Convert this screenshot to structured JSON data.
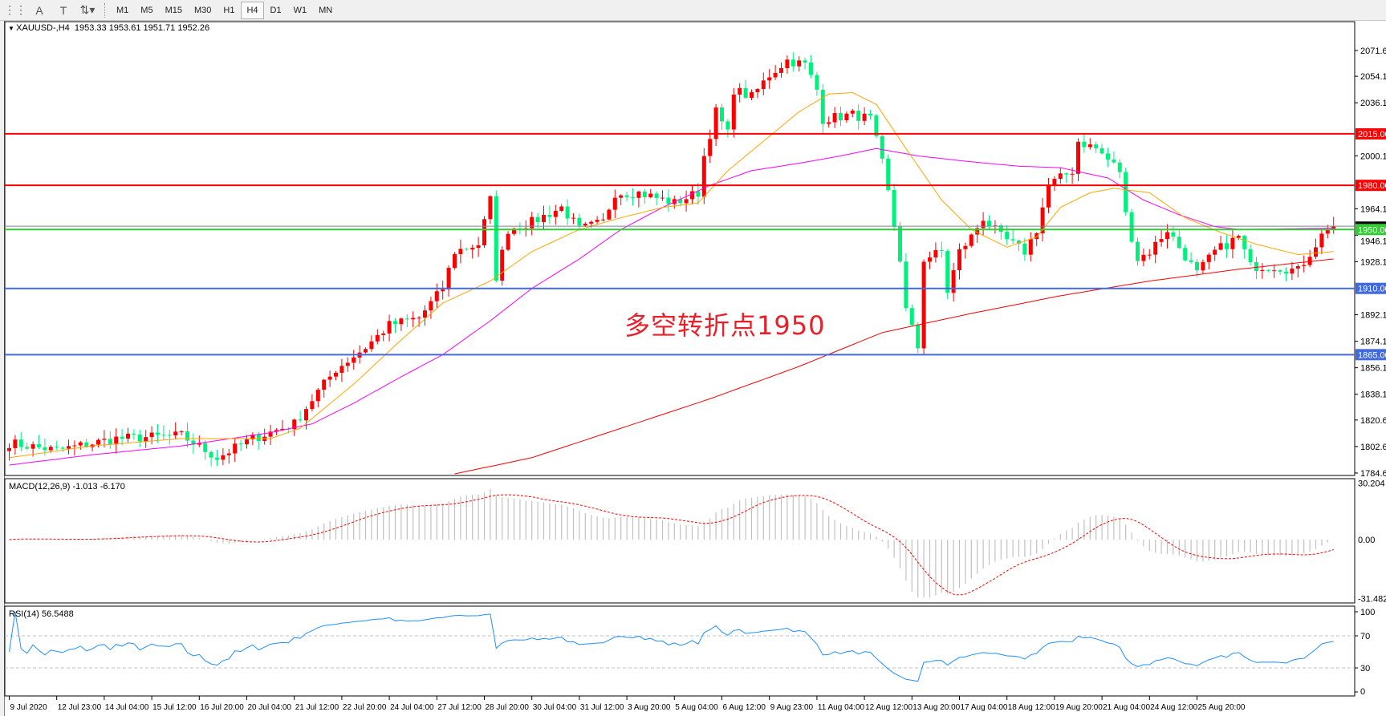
{
  "toolbar": {
    "tools": [
      {
        "name": "period-separators-icon",
        "glyph": "⋮⋮"
      },
      {
        "name": "text-icon",
        "glyph": "A"
      },
      {
        "name": "text-label-icon",
        "glyph": "T"
      },
      {
        "name": "arrows-dropdown-icon",
        "glyph": "⇅▾"
      }
    ],
    "timeframes": [
      "M1",
      "M5",
      "M15",
      "M30",
      "H1",
      "H4",
      "D1",
      "W1",
      "MN"
    ],
    "active_timeframe": "H4"
  },
  "chart": {
    "header": "XAUUSD-,H4  1953.33 1953.61 1951.71 1952.26",
    "annotation": "多空转折点1950",
    "colors": {
      "up": "#ff0000",
      "down": "#00f07c",
      "ma_fast": "#ffa500",
      "ma_mid": "#ff00ff",
      "ma_slow": "#ff0000",
      "macd_hist": "#c0c0c0",
      "macd_signal": "#ff0000",
      "rsi": "#1e90ff"
    }
  },
  "chart_data": {
    "type": "candlestick",
    "symbol": "XAUUSD-",
    "timeframe": "H4",
    "last_ohlc": {
      "open": 1953.33,
      "high": 1953.61,
      "low": 1951.71,
      "close": 1952.26
    },
    "ylim": [
      1784.6,
      2071.6
    ],
    "price_ticks": [
      "2071.60",
      "2054.10",
      "2036.10",
      "2000.10",
      "1964.10",
      "1946.10",
      "1928.10",
      "1892.10",
      "1874.10",
      "1856.10",
      "1838.10",
      "1820.60",
      "1802.60",
      "1784.60"
    ],
    "price_tick_values": [
      2071.6,
      2054.1,
      2036.1,
      2000.1,
      1964.1,
      1946.1,
      1928.1,
      1892.1,
      1874.1,
      1856.1,
      1838.1,
      1820.6,
      1802.6,
      1784.6
    ],
    "time_labels": [
      "9 Jul 2020",
      "12 Jul 23:00",
      "14 Jul 04:00",
      "15 Jul 12:00",
      "16 Jul 20:00",
      "20 Jul 04:00",
      "21 Jul 12:00",
      "22 Jul 20:00",
      "24 Jul 04:00",
      "27 Jul 12:00",
      "28 Jul 20:00",
      "30 Jul 04:00",
      "31 Jul 12:00",
      "3 Aug 20:00",
      "5 Aug 04:00",
      "6 Aug 12:00",
      "9 Aug 23:00",
      "11 Aug 04:00",
      "12 Aug 12:00",
      "13 Aug 20:00",
      "17 Aug 04:00",
      "18 Aug 12:00",
      "19 Aug 20:00",
      "21 Aug 04:00",
      "24 Aug 12:00",
      "25 Aug 20:00"
    ],
    "bars_per_label": 8,
    "bar_count": 224,
    "close_path_bar_price": [
      [
        0,
        1805
      ],
      [
        8,
        1800
      ],
      [
        18,
        1808
      ],
      [
        29,
        1810
      ],
      [
        35,
        1795
      ],
      [
        41,
        1808
      ],
      [
        48,
        1818
      ],
      [
        52,
        1840
      ],
      [
        55,
        1855
      ],
      [
        60,
        1870
      ],
      [
        64,
        1885
      ],
      [
        69,
        1890
      ],
      [
        73,
        1910
      ],
      [
        75,
        1935
      ],
      [
        79,
        1940
      ],
      [
        81,
        1970
      ],
      [
        82,
        1918
      ],
      [
        84,
        1950
      ],
      [
        88,
        1955
      ],
      [
        93,
        1965
      ],
      [
        96,
        1950
      ],
      [
        100,
        1955
      ],
      [
        102,
        1975
      ],
      [
        106,
        1975
      ],
      [
        112,
        1968
      ],
      [
        116,
        1975
      ],
      [
        117,
        2000
      ],
      [
        119,
        2030
      ],
      [
        121,
        2015
      ],
      [
        122,
        2045
      ],
      [
        125,
        2040
      ],
      [
        128,
        2055
      ],
      [
        131,
        2065
      ],
      [
        134,
        2062
      ],
      [
        136,
        2045
      ],
      [
        137,
        2025
      ],
      [
        142,
        2028
      ],
      [
        145,
        2025
      ],
      [
        147,
        1995
      ],
      [
        148,
        1975
      ],
      [
        150,
        1930
      ],
      [
        151,
        1895
      ],
      [
        153,
        1870
      ],
      [
        154,
        1930
      ],
      [
        157,
        1935
      ],
      [
        158,
        1908
      ],
      [
        160,
        1935
      ],
      [
        162,
        1945
      ],
      [
        164,
        1958
      ],
      [
        167,
        1945
      ],
      [
        171,
        1935
      ],
      [
        173,
        1950
      ],
      [
        175,
        1980
      ],
      [
        179,
        1990
      ],
      [
        180,
        2010
      ],
      [
        183,
        2005
      ],
      [
        187,
        1990
      ],
      [
        188,
        1960
      ],
      [
        190,
        1930
      ],
      [
        192,
        1935
      ],
      [
        195,
        1950
      ],
      [
        200,
        1920
      ],
      [
        203,
        1935
      ],
      [
        207,
        1945
      ],
      [
        209,
        1925
      ],
      [
        213,
        1925
      ],
      [
        217,
        1922
      ],
      [
        220,
        1940
      ],
      [
        222,
        1952
      ],
      [
        223,
        1952.26
      ]
    ],
    "ma_fast": [
      [
        0,
        1795
      ],
      [
        14,
        1803
      ],
      [
        29,
        1808
      ],
      [
        44,
        1808
      ],
      [
        49,
        1815
      ],
      [
        58,
        1845
      ],
      [
        66,
        1875
      ],
      [
        73,
        1900
      ],
      [
        81,
        1915
      ],
      [
        88,
        1935
      ],
      [
        96,
        1950
      ],
      [
        103,
        1958
      ],
      [
        110,
        1965
      ],
      [
        116,
        1968
      ],
      [
        121,
        1990
      ],
      [
        127,
        2010
      ],
      [
        133,
        2030
      ],
      [
        138,
        2042
      ],
      [
        142,
        2043
      ],
      [
        146,
        2035
      ],
      [
        151,
        2005
      ],
      [
        157,
        1970
      ],
      [
        162,
        1950
      ],
      [
        168,
        1938
      ],
      [
        173,
        1945
      ],
      [
        177,
        1965
      ],
      [
        182,
        1975
      ],
      [
        186,
        1978
      ],
      [
        192,
        1975
      ],
      [
        198,
        1958
      ],
      [
        204,
        1948
      ],
      [
        210,
        1940
      ],
      [
        217,
        1933
      ],
      [
        223,
        1935
      ]
    ],
    "ma_mid": [
      [
        0,
        1790
      ],
      [
        14,
        1797
      ],
      [
        29,
        1803
      ],
      [
        44,
        1812
      ],
      [
        51,
        1818
      ],
      [
        58,
        1832
      ],
      [
        66,
        1850
      ],
      [
        73,
        1865
      ],
      [
        81,
        1888
      ],
      [
        88,
        1910
      ],
      [
        96,
        1930
      ],
      [
        103,
        1950
      ],
      [
        110,
        1965
      ],
      [
        118,
        1980
      ],
      [
        125,
        1990
      ],
      [
        133,
        1995
      ],
      [
        140,
        2000
      ],
      [
        146,
        2005
      ],
      [
        153,
        2000
      ],
      [
        162,
        1996
      ],
      [
        170,
        1993
      ],
      [
        177,
        1992
      ],
      [
        185,
        1985
      ],
      [
        191,
        1970
      ],
      [
        197,
        1960
      ],
      [
        203,
        1952
      ],
      [
        207,
        1950
      ],
      [
        223,
        1951
      ]
    ],
    "ma_slow": [
      [
        75,
        1784
      ],
      [
        88,
        1795
      ],
      [
        103,
        1815
      ],
      [
        118,
        1835
      ],
      [
        133,
        1857
      ],
      [
        147,
        1880
      ],
      [
        162,
        1893
      ],
      [
        177,
        1905
      ],
      [
        192,
        1915
      ],
      [
        207,
        1923
      ],
      [
        223,
        1930
      ]
    ],
    "levels": [
      {
        "price": 2015,
        "label": "2015.00",
        "color": "#ff0000"
      },
      {
        "price": 1980,
        "label": "1980.00",
        "color": "#ff0000"
      },
      {
        "price": 1950,
        "label": "1950.00",
        "color": "#32cd32"
      },
      {
        "price": 1910,
        "label": "1910.00",
        "color": "#4169e1"
      },
      {
        "price": 1865,
        "label": "1865.00",
        "color": "#4169e1"
      }
    ],
    "current_price": 1952.26,
    "macd": {
      "label": "MACD(12,26,9) -1.013 -6.170",
      "ylim": [
        -31.482,
        30.204
      ],
      "ticks": [
        "30.204",
        "0.00",
        "-31.482"
      ],
      "tick_values": [
        30.204,
        0,
        -31.482
      ]
    },
    "rsi": {
      "label": "RSI(14) 56.5488",
      "ylim": [
        0,
        100
      ],
      "ticks": [
        "100",
        "70",
        "30",
        "0"
      ],
      "tick_values": [
        100,
        70,
        30,
        0
      ],
      "levels": [
        70,
        30
      ]
    }
  }
}
